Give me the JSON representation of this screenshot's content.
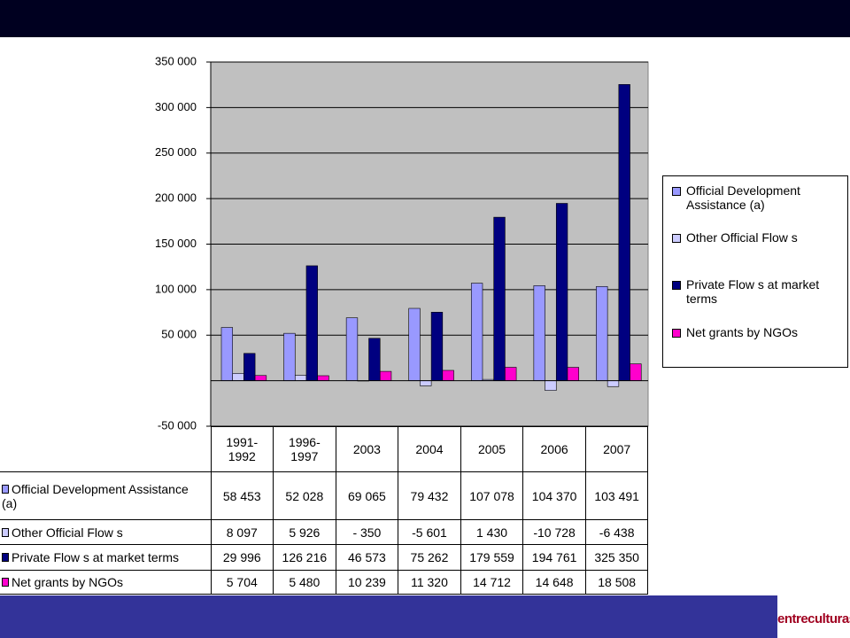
{
  "chart_data": {
    "type": "bar",
    "categories": [
      "1991-1992",
      "1996-1997",
      "2003",
      "2004",
      "2005",
      "2006",
      "2007"
    ],
    "series": [
      {
        "name": "Official Development Assistance (a)",
        "color": "#9999ff",
        "values": [
          58453,
          52028,
          69065,
          79432,
          107078,
          104370,
          103491
        ],
        "value_labels": [
          "58 453",
          "52 028",
          "69 065",
          "79 432",
          "107 078",
          "104 370",
          "103 491"
        ]
      },
      {
        "name": "Other Official Flow s",
        "color": "#ccccff",
        "values": [
          8097,
          5926,
          -350,
          -5601,
          1430,
          -10728,
          -6438
        ],
        "value_labels": [
          "8 097",
          "5 926",
          "- 350",
          "-5 601",
          "1 430",
          "-10 728",
          "-6 438"
        ]
      },
      {
        "name": "Private Flow s at market terms",
        "color": "#000080",
        "values": [
          29996,
          126216,
          46573,
          75262,
          179559,
          194761,
          325350
        ],
        "value_labels": [
          "29 996",
          "126 216",
          "46 573",
          "75 262",
          "179 559",
          "194 761",
          "325 350"
        ]
      },
      {
        "name": "Net grants by NGOs",
        "color": "#ff00cc",
        "values": [
          5704,
          5480,
          10239,
          11320,
          14712,
          14648,
          18508
        ],
        "value_labels": [
          "5 704",
          "5 480",
          "10 239",
          "11 320",
          "14 712",
          "14 648",
          "18 508"
        ]
      }
    ],
    "ylim": [
      -50000,
      350000
    ],
    "yticks": [
      {
        "value": -50000,
        "label": "-50 000"
      },
      {
        "value": 50000,
        "label": "50 000"
      },
      {
        "value": 100000,
        "label": "100 000"
      },
      {
        "value": 150000,
        "label": "150 000"
      },
      {
        "value": 200000,
        "label": "200 000"
      },
      {
        "value": 250000,
        "label": "250 000"
      },
      {
        "value": 300000,
        "label": "300 000"
      },
      {
        "value": 350000,
        "label": "350 000"
      }
    ],
    "grid": true,
    "legend": "right",
    "logo": "entreculturas"
  }
}
